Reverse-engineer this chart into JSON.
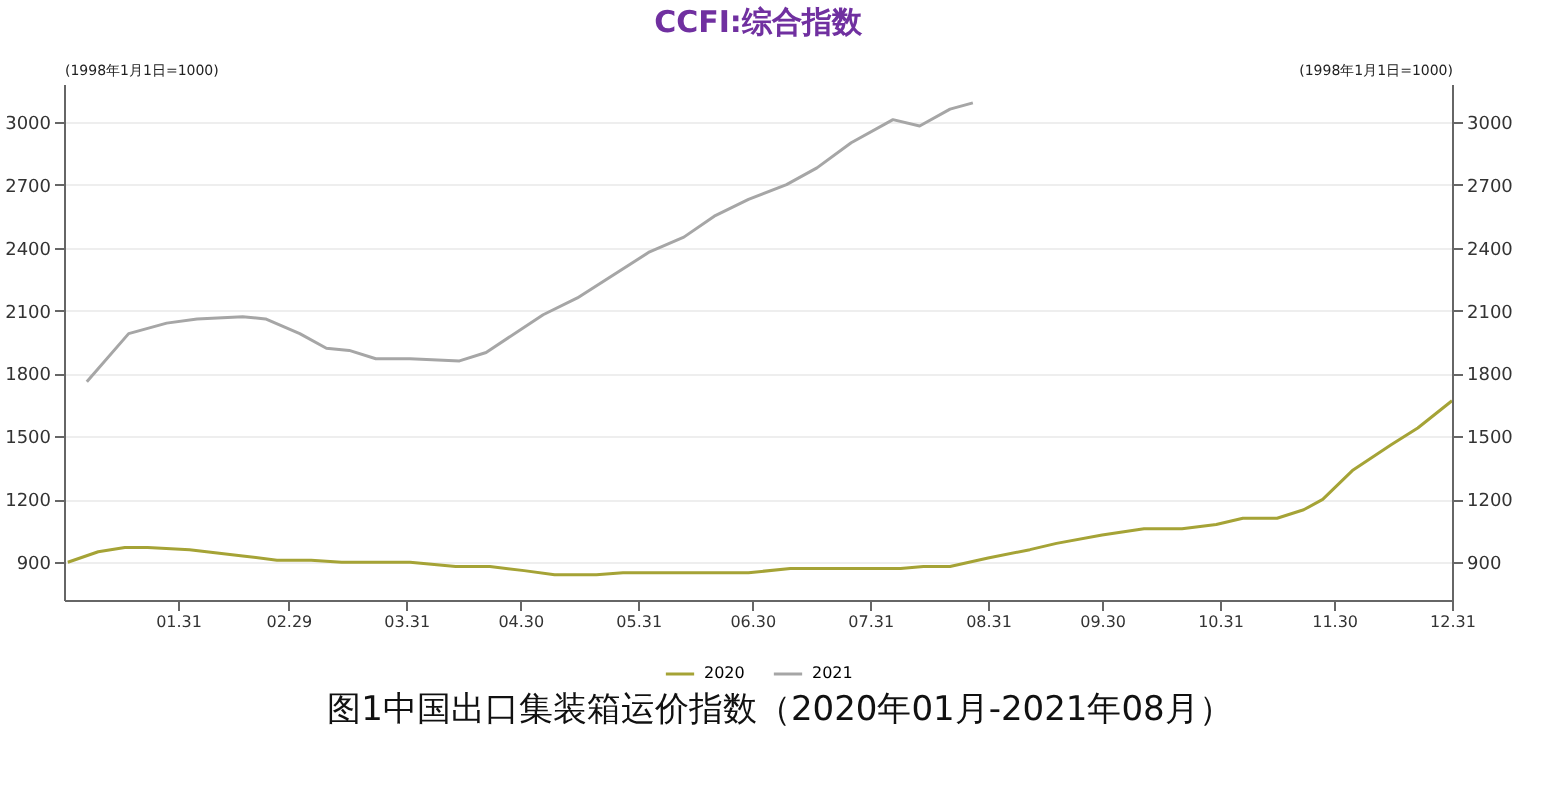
{
  "chart_data": {
    "type": "line",
    "title": "CCFI:综合指数",
    "ylabel": "(1998年1月1日=1000)",
    "y2label": "(1998年1月1日=1000)",
    "annotations": [
      "图1中国出口集装箱运价指数（2020年01月-2021年08月）"
    ],
    "xlim": [
      "--01-01",
      "--12-31"
    ],
    "xticks": [
      {
        "value": "--01-31",
        "label": "01.31"
      },
      {
        "value": "--02-29",
        "label": "02.29"
      },
      {
        "value": "--03-31",
        "label": "03.31"
      },
      {
        "value": "--04-30",
        "label": "04.30"
      },
      {
        "value": "--05-31",
        "label": "05.31"
      },
      {
        "value": "--06-30",
        "label": "06.30"
      },
      {
        "value": "--07-31",
        "label": "07.31"
      },
      {
        "value": "--08-31",
        "label": "08.31"
      },
      {
        "value": "--09-30",
        "label": "09.30"
      },
      {
        "value": "--10-31",
        "label": "10.31"
      },
      {
        "value": "--11-30",
        "label": "11.30"
      },
      {
        "value": "--12-31",
        "label": "12.31"
      }
    ],
    "ylim": [
      720,
      3180
    ],
    "yticks": [
      900,
      1200,
      1500,
      1800,
      2100,
      2400,
      2700,
      3000
    ],
    "y2lim": [
      720,
      3180
    ],
    "y2ticks": [
      900,
      1200,
      1500,
      1800,
      2100,
      2400,
      2700,
      3000
    ],
    "grid": "y",
    "legend": "bottom",
    "line_style": "solid",
    "series": [
      {
        "name": "2020",
        "color": "#a5a336",
        "x": [
          "--01-02",
          "--01-10",
          "--01-17",
          "--01-23",
          "--02-03",
          "--02-17",
          "--02-26",
          "--03-06",
          "--03-14",
          "--03-27",
          "--04-01",
          "--04-13",
          "--04-22",
          "--05-01",
          "--05-09",
          "--05-20",
          "--05-27",
          "--06-19",
          "--06-29",
          "--07-10",
          "--07-20",
          "--07-31",
          "--08-08",
          "--08-14",
          "--08-21",
          "--08-31",
          "--09-11",
          "--09-18",
          "--09-30",
          "--10-11",
          "--10-21",
          "--10-30",
          "--11-06",
          "--11-15",
          "--11-22",
          "--11-27",
          "--12-05",
          "--12-15",
          "--12-22",
          "--12-31"
        ],
        "values": [
          900,
          950,
          970,
          970,
          960,
          930,
          910,
          910,
          900,
          900,
          900,
          880,
          880,
          860,
          840,
          840,
          850,
          850,
          850,
          870,
          870,
          870,
          870,
          880,
          880,
          920,
          960,
          990,
          1030,
          1060,
          1060,
          1080,
          1110,
          1110,
          1150,
          1200,
          1340,
          1460,
          1540,
          1670
        ]
      },
      {
        "name": "2021",
        "color": "#a6a6a6",
        "x": [
          "--01-07",
          "--01-18",
          "--01-28",
          "--02-05",
          "--02-17",
          "--02-23",
          "--03-03",
          "--03-10",
          "--03-16",
          "--03-23",
          "--04-01",
          "--04-14",
          "--04-21",
          "--05-06",
          "--05-15",
          "--06-03",
          "--06-12",
          "--06-20",
          "--06-29",
          "--07-09",
          "--07-17",
          "--07-26",
          "--08-06",
          "--08-13",
          "--08-21",
          "--08-27"
        ],
        "values": [
          1760,
          1990,
          2040,
          2060,
          2070,
          2060,
          1990,
          1920,
          1910,
          1870,
          1870,
          1860,
          1900,
          2080,
          2160,
          2380,
          2450,
          2550,
          2630,
          2700,
          2780,
          2900,
          3010,
          2980,
          3060,
          3090
        ]
      }
    ]
  }
}
